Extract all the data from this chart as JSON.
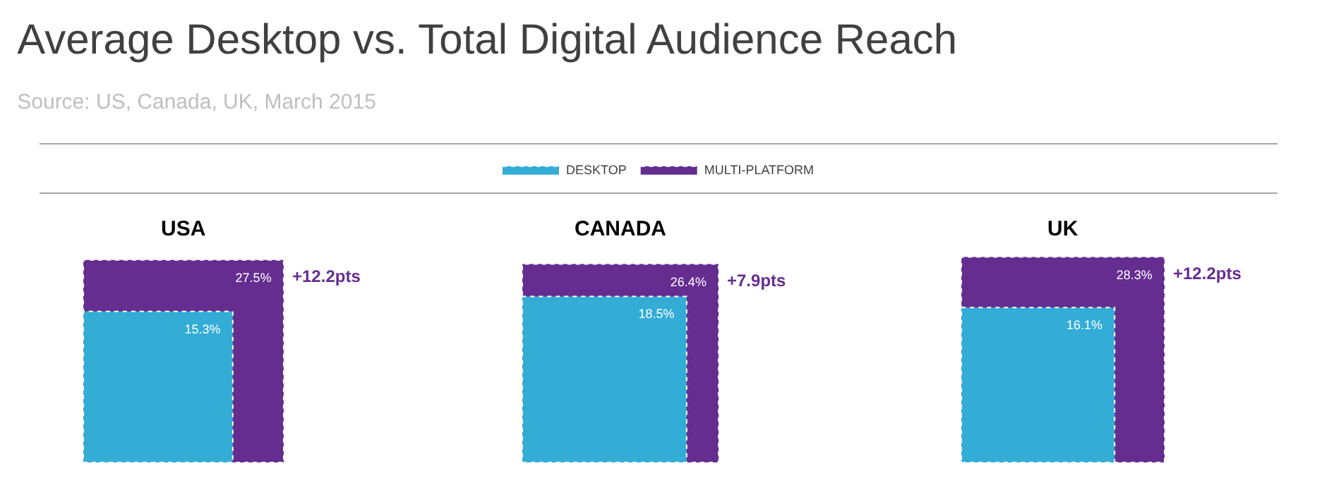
{
  "chart_data": {
    "type": "other",
    "title": "Average Desktop vs. Total Digital Audience Reach",
    "subtitle": "Source: US, Canada, UK, March 2015",
    "categories": [
      "USA",
      "CANADA",
      "UK"
    ],
    "series": [
      {
        "name": "DESKTOP",
        "color": "#33acd6",
        "values": [
          15.3,
          18.5,
          16.1
        ],
        "value_labels": [
          "15.3%",
          "18.5%",
          "16.1%"
        ]
      },
      {
        "name": "MULTI-PLATFORM",
        "color": "#652d90",
        "values": [
          27.5,
          26.4,
          28.3
        ],
        "value_labels": [
          "27.5%",
          "26.4%",
          "28.3%"
        ]
      }
    ],
    "legend": "top",
    "annotations": [
      {
        "text": "+12.2pts",
        "x": "USA"
      },
      {
        "text": "+7.9pts",
        "x": "CANADA"
      },
      {
        "text": "+12.2pts",
        "x": "UK"
      }
    ]
  }
}
